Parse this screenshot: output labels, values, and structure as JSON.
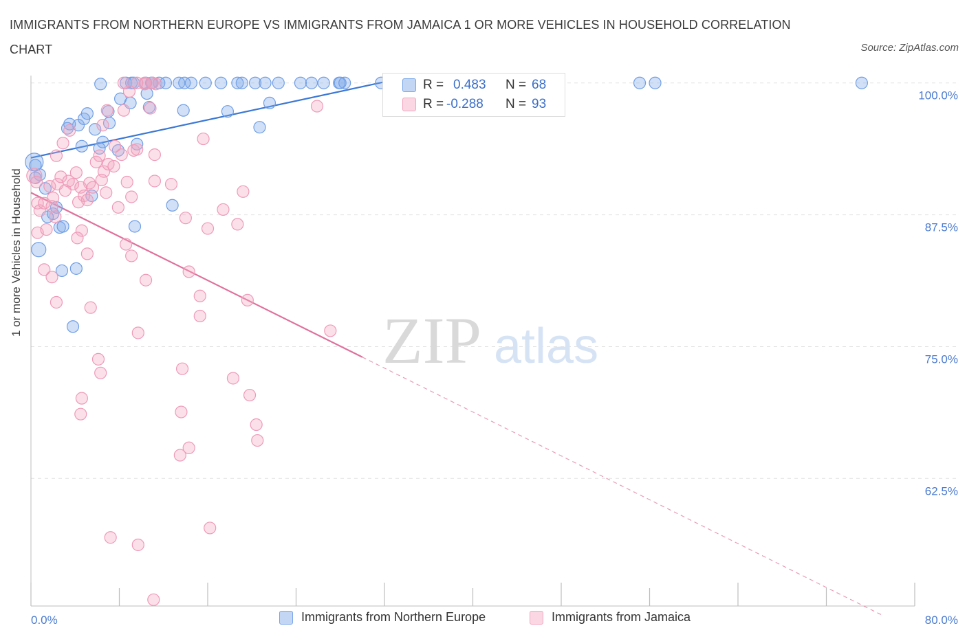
{
  "title": "IMMIGRANTS FROM NORTHERN EUROPE VS IMMIGRANTS FROM JAMAICA 1 OR MORE VEHICLES IN HOUSEHOLD CORRELATION CHART",
  "source": "Source: ZipAtlas.com",
  "watermark": {
    "zip": "ZIP",
    "atlas": "atlas"
  },
  "legend_stats": {
    "r_label": "R =",
    "n_label": "N =",
    "rows": [
      {
        "r": "0.483",
        "n": "68",
        "color": "#7aa6e8"
      },
      {
        "r": "-0.288",
        "n": "93",
        "color": "#f4a6c0"
      }
    ]
  },
  "chart_data": {
    "type": "scatter",
    "title": "IMMIGRANTS FROM NORTHERN EUROPE VS IMMIGRANTS FROM JAMAICA 1 OR MORE VEHICLES IN HOUSEHOLD CORRELATION CHART",
    "xlabel": "",
    "ylabel": "1 or more Vehicles in Household",
    "x_tick_labels": [
      "0.0%",
      "80.0%"
    ],
    "y_tick_labels": [
      "100.0%",
      "87.5%",
      "75.0%",
      "62.5%"
    ],
    "xlim": [
      0,
      80
    ],
    "ylim": [
      50.4,
      100.7
    ],
    "grid": true,
    "legend_placement": "bottom",
    "series": [
      {
        "name": "Immigrants from Northern Europe",
        "color": "#7aa6e8",
        "trend": {
          "x": [
            0,
            32
          ],
          "y": [
            92.9,
            100.1
          ],
          "dashed_x": null
        },
        "points": [
          [
            0.3,
            92.5
          ],
          [
            0.4,
            92.2
          ],
          [
            0.8,
            91.3
          ],
          [
            1.3,
            90.0
          ],
          [
            2.0,
            87.6
          ],
          [
            1.5,
            87.3
          ],
          [
            2.6,
            86.3
          ],
          [
            0.7,
            84.2
          ],
          [
            2.8,
            82.2
          ],
          [
            4.1,
            82.4
          ],
          [
            3.8,
            76.9
          ],
          [
            3.3,
            95.7
          ],
          [
            3.5,
            96.1
          ],
          [
            4.3,
            96.0
          ],
          [
            4.8,
            96.6
          ],
          [
            5.1,
            97.1
          ],
          [
            5.8,
            95.6
          ],
          [
            4.6,
            94.0
          ],
          [
            6.5,
            94.4
          ],
          [
            6.2,
            93.8
          ],
          [
            7.0,
            97.3
          ],
          [
            7.1,
            96.2
          ],
          [
            7.9,
            93.6
          ],
          [
            9.0,
            98.1
          ],
          [
            9.6,
            94.2
          ],
          [
            10.5,
            99.0
          ],
          [
            10.7,
            97.7
          ],
          [
            8.1,
            98.5
          ],
          [
            8.6,
            100.0
          ],
          [
            6.3,
            99.9
          ],
          [
            9.1,
            100.0
          ],
          [
            10.4,
            100.0
          ],
          [
            11.6,
            100.0
          ],
          [
            12.2,
            100.0
          ],
          [
            13.4,
            100.0
          ],
          [
            14.5,
            100.0
          ],
          [
            15.8,
            100.0
          ],
          [
            17.2,
            100.0
          ],
          [
            18.7,
            100.0
          ],
          [
            19.1,
            100.0
          ],
          [
            20.3,
            100.0
          ],
          [
            21.2,
            100.0
          ],
          [
            22.4,
            100.0
          ],
          [
            24.4,
            100.0
          ],
          [
            25.4,
            100.0
          ],
          [
            26.5,
            100.0
          ],
          [
            27.9,
            100.0
          ],
          [
            28.0,
            100.0
          ],
          [
            31.7,
            100.0
          ],
          [
            34.5,
            100.0
          ],
          [
            13.8,
            97.4
          ],
          [
            17.8,
            97.3
          ],
          [
            21.6,
            98.1
          ],
          [
            20.7,
            95.8
          ],
          [
            12.8,
            88.4
          ],
          [
            9.4,
            86.4
          ],
          [
            5.5,
            89.3
          ],
          [
            2.3,
            88.2
          ],
          [
            2.9,
            86.4
          ],
          [
            0.4,
            91.0
          ],
          [
            55.1,
            100.0
          ],
          [
            56.5,
            100.0
          ],
          [
            75.2,
            100.0
          ],
          [
            28.4,
            100.0
          ],
          [
            13.9,
            100.0
          ],
          [
            11.0,
            100.0
          ],
          [
            9.3,
            100.0
          ],
          [
            10.9,
            100.0
          ]
        ]
      },
      {
        "name": "Immigrants from Jamaica",
        "color": "#f4a6c0",
        "trend": {
          "x": [
            0,
            30
          ],
          "y": [
            89.6,
            74.0
          ],
          "dashed_x": [
            30,
            77
          ]
        },
        "points": [
          [
            0.3,
            91.2
          ],
          [
            0.5,
            90.6
          ],
          [
            0.6,
            88.6
          ],
          [
            0.8,
            87.9
          ],
          [
            0.6,
            85.8
          ],
          [
            1.2,
            88.6
          ],
          [
            1.4,
            86.1
          ],
          [
            1.7,
            90.2
          ],
          [
            2.0,
            89.1
          ],
          [
            2.4,
            90.4
          ],
          [
            2.7,
            91.1
          ],
          [
            2.3,
            93.1
          ],
          [
            2.9,
            94.3
          ],
          [
            3.5,
            95.5
          ],
          [
            3.8,
            90.4
          ],
          [
            4.1,
            91.5
          ],
          [
            4.5,
            90.1
          ],
          [
            4.8,
            89.3
          ],
          [
            5.1,
            88.9
          ],
          [
            5.3,
            90.5
          ],
          [
            5.6,
            90.1
          ],
          [
            5.9,
            92.5
          ],
          [
            6.2,
            93.1
          ],
          [
            6.6,
            91.6
          ],
          [
            7.0,
            92.3
          ],
          [
            7.5,
            92.1
          ],
          [
            8.2,
            93.2
          ],
          [
            8.7,
            90.6
          ],
          [
            9.3,
            93.6
          ],
          [
            9.6,
            93.7
          ],
          [
            8.9,
            99.2
          ],
          [
            10.3,
            99.9
          ],
          [
            11.3,
            99.9
          ],
          [
            10.8,
            97.6
          ],
          [
            12.7,
            90.4
          ],
          [
            11.2,
            93.2
          ],
          [
            8.4,
            97.4
          ],
          [
            9.1,
            89.2
          ],
          [
            7.9,
            88.2
          ],
          [
            6.4,
            90.8
          ],
          [
            4.6,
            86.0
          ],
          [
            4.2,
            85.3
          ],
          [
            5.1,
            83.8
          ],
          [
            4.3,
            88.7
          ],
          [
            3.1,
            89.8
          ],
          [
            1.9,
            88.3
          ],
          [
            2.2,
            87.3
          ],
          [
            1.2,
            82.3
          ],
          [
            1.9,
            81.6
          ],
          [
            2.3,
            79.2
          ],
          [
            5.4,
            78.7
          ],
          [
            6.1,
            73.8
          ],
          [
            6.3,
            72.5
          ],
          [
            4.6,
            70.1
          ],
          [
            4.5,
            68.6
          ],
          [
            7.2,
            56.9
          ],
          [
            9.7,
            56.2
          ],
          [
            11.1,
            51.0
          ],
          [
            9.7,
            76.3
          ],
          [
            10.4,
            81.3
          ],
          [
            8.6,
            84.7
          ],
          [
            9.1,
            83.6
          ],
          [
            11.2,
            90.7
          ],
          [
            14.0,
            87.2
          ],
          [
            14.3,
            82.1
          ],
          [
            15.3,
            79.8
          ],
          [
            15.3,
            77.9
          ],
          [
            16.0,
            86.2
          ],
          [
            15.6,
            94.7
          ],
          [
            17.4,
            88.0
          ],
          [
            18.7,
            86.6
          ],
          [
            19.2,
            89.7
          ],
          [
            19.6,
            79.4
          ],
          [
            18.3,
            72.0
          ],
          [
            19.8,
            70.4
          ],
          [
            20.4,
            67.6
          ],
          [
            20.5,
            66.1
          ],
          [
            13.7,
            72.9
          ],
          [
            13.6,
            68.8
          ],
          [
            13.5,
            64.7
          ],
          [
            14.3,
            65.4
          ],
          [
            16.2,
            57.8
          ],
          [
            27.1,
            76.5
          ],
          [
            25.9,
            97.8
          ],
          [
            6.9,
            97.4
          ],
          [
            6.5,
            96.0
          ],
          [
            7.6,
            94.0
          ],
          [
            10.3,
            100.0
          ],
          [
            11.0,
            100.0
          ],
          [
            9.6,
            100.0
          ],
          [
            8.4,
            100.0
          ],
          [
            6.8,
            89.6
          ],
          [
            3.4,
            90.7
          ]
        ]
      }
    ]
  }
}
